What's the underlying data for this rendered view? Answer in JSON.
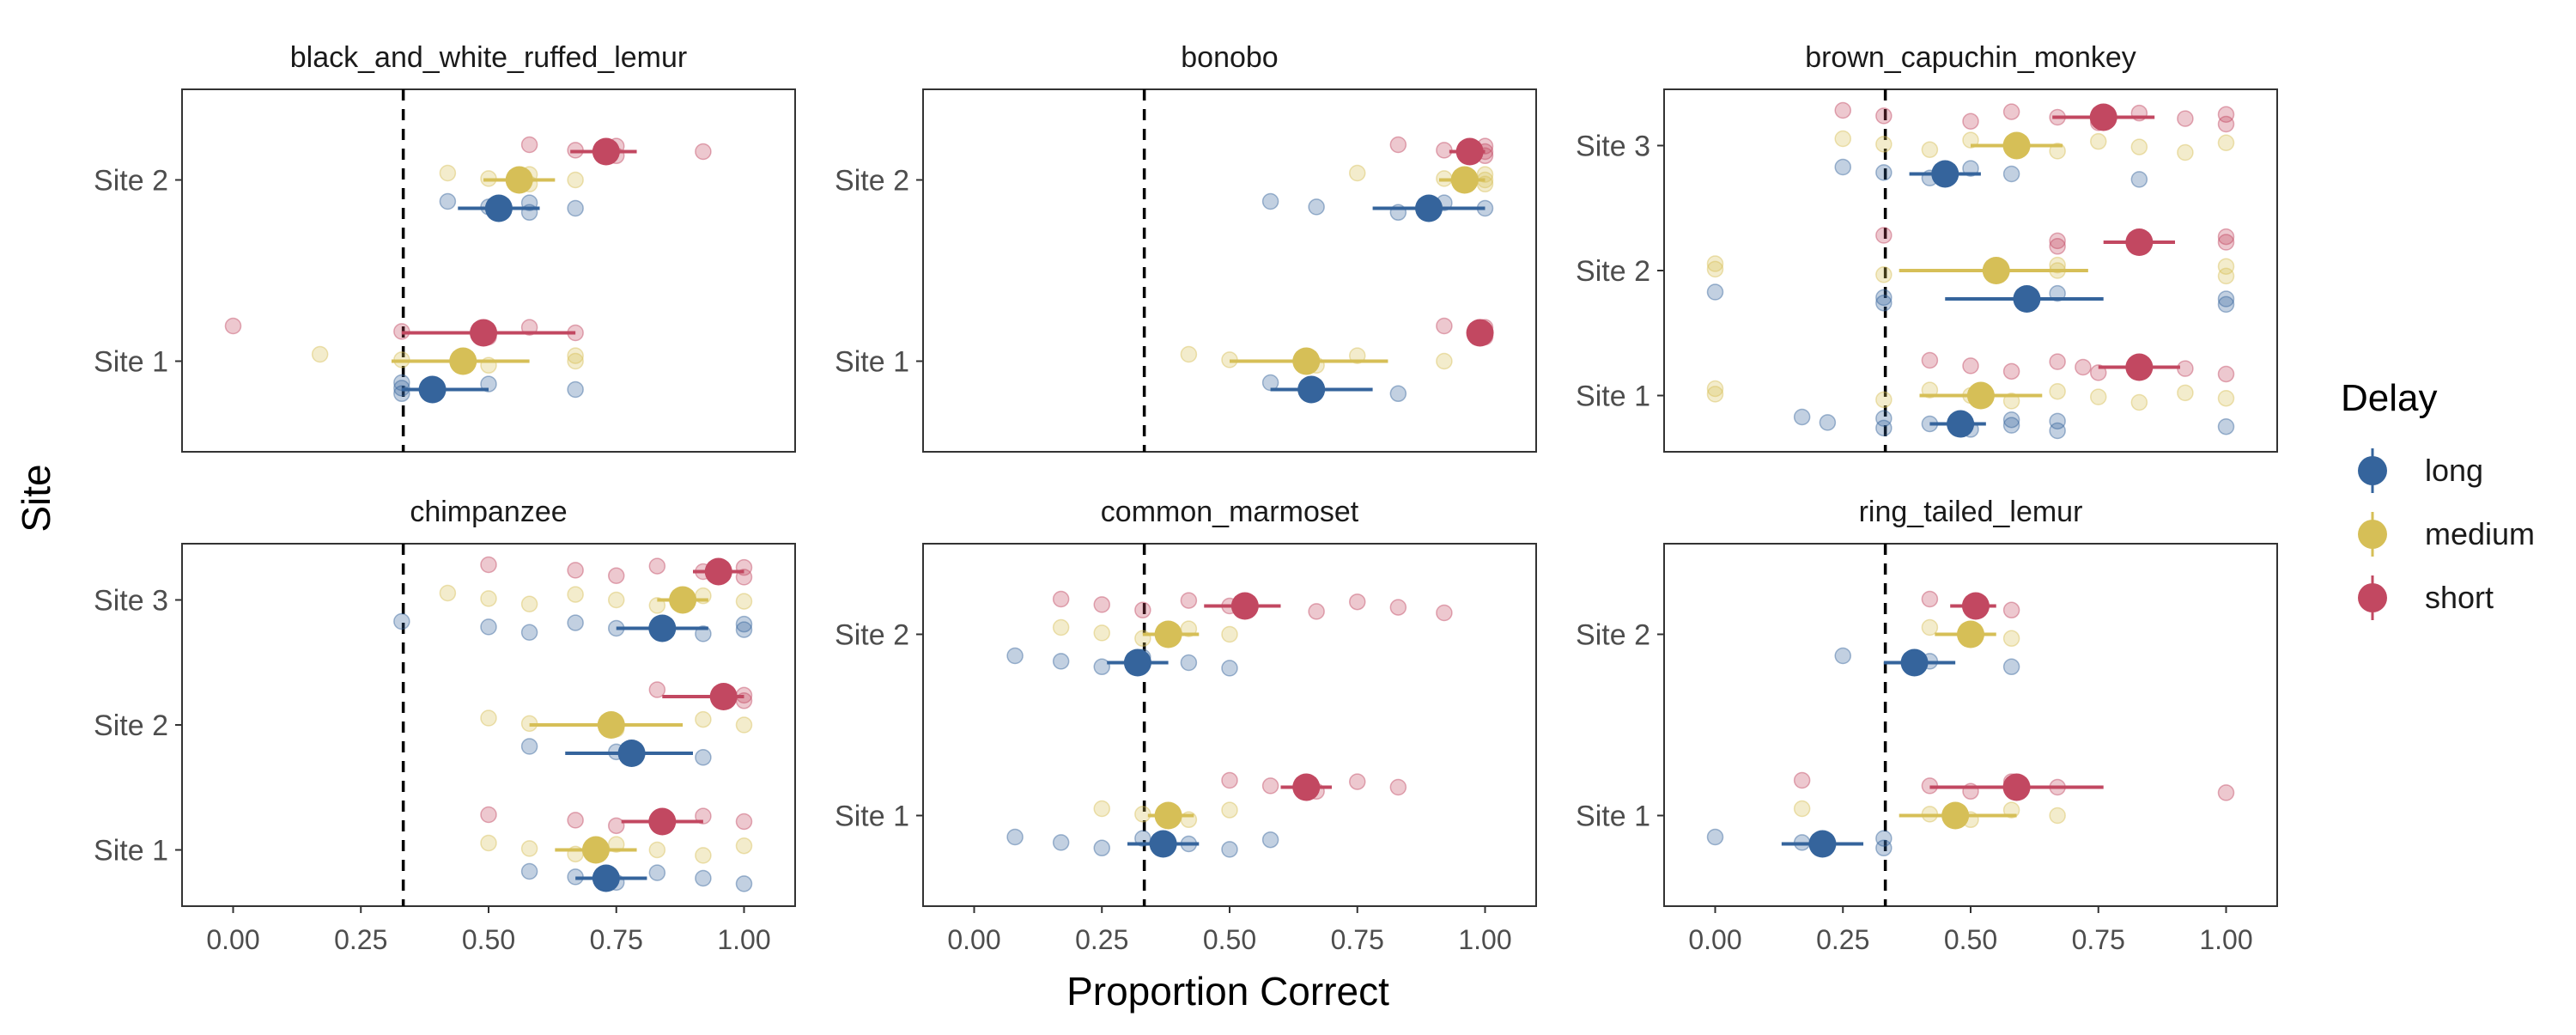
{
  "chart_data": {
    "type": "scatter",
    "xlabel": "Proportion Correct",
    "ylabel": "Site",
    "xlim": [
      -0.1,
      1.1
    ],
    "xticks": [
      "0.00",
      "0.25",
      "0.50",
      "0.75",
      "1.00"
    ],
    "reference_line_x": 0.333,
    "legend": {
      "title": "Delay",
      "position": "right",
      "items": [
        "long",
        "medium",
        "short"
      ]
    },
    "series_colors": {
      "long": "#35649c",
      "medium": "#d6bf57",
      "short": "#c24861"
    },
    "panels": [
      {
        "title": "black_and_white_ruffed_lemur",
        "sites": [
          "Site 1",
          "Site 2"
        ],
        "means": {
          "long": [
            {
              "site": "Site 1",
              "mean": 0.39,
              "lo": 0.33,
              "hi": 0.5
            },
            {
              "site": "Site 2",
              "mean": 0.52,
              "lo": 0.44,
              "hi": 0.6
            }
          ],
          "medium": [
            {
              "site": "Site 1",
              "mean": 0.45,
              "lo": 0.31,
              "hi": 0.58
            },
            {
              "site": "Site 2",
              "mean": 0.56,
              "lo": 0.49,
              "hi": 0.63
            }
          ],
          "short": [
            {
              "site": "Site 1",
              "mean": 0.49,
              "lo": 0.33,
              "hi": 0.67
            },
            {
              "site": "Site 2",
              "mean": 0.73,
              "lo": 0.66,
              "hi": 0.79
            }
          ]
        },
        "points": {
          "long": [
            {
              "site": "Site 1",
              "values": [
                0.33,
                0.33,
                0.33,
                0.5,
                0.67
              ]
            },
            {
              "site": "Site 2",
              "values": [
                0.42,
                0.5,
                0.58,
                0.58,
                0.67
              ]
            }
          ],
          "medium": [
            {
              "site": "Site 1",
              "values": [
                0.17,
                0.33,
                0.5,
                0.67,
                0.67
              ]
            },
            {
              "site": "Site 2",
              "values": [
                0.42,
                0.5,
                0.58,
                0.58,
                0.67
              ]
            }
          ],
          "short": [
            {
              "site": "Site 1",
              "values": [
                0.0,
                0.33,
                0.5,
                0.58,
                0.67
              ]
            },
            {
              "site": "Site 2",
              "values": [
                0.58,
                0.67,
                0.75,
                0.75,
                0.92
              ]
            }
          ]
        }
      },
      {
        "title": "bonobo",
        "sites": [
          "Site 1",
          "Site 2"
        ],
        "means": {
          "long": [
            {
              "site": "Site 1",
              "mean": 0.66,
              "lo": 0.58,
              "hi": 0.78
            },
            {
              "site": "Site 2",
              "mean": 0.89,
              "lo": 0.78,
              "hi": 1.0
            }
          ],
          "medium": [
            {
              "site": "Site 1",
              "mean": 0.65,
              "lo": 0.5,
              "hi": 0.81
            },
            {
              "site": "Site 2",
              "mean": 0.96,
              "lo": 0.91,
              "hi": 1.0
            }
          ],
          "short": [
            {
              "site": "Site 1",
              "mean": 0.99,
              "lo": 0.97,
              "hi": 1.0
            },
            {
              "site": "Site 2",
              "mean": 0.97,
              "lo": 0.93,
              "hi": 1.0
            }
          ]
        },
        "points": {
          "long": [
            {
              "site": "Site 1",
              "values": [
                0.58,
                0.67,
                0.83
              ]
            },
            {
              "site": "Site 2",
              "values": [
                0.58,
                0.67,
                0.83,
                0.92,
                1.0
              ]
            }
          ],
          "medium": [
            {
              "site": "Site 1",
              "values": [
                0.42,
                0.5,
                0.67,
                0.75,
                0.92
              ]
            },
            {
              "site": "Site 2",
              "values": [
                0.75,
                0.92,
                1.0,
                1.0,
                1.0
              ]
            }
          ],
          "short": [
            {
              "site": "Site 1",
              "values": [
                0.92,
                1.0,
                1.0,
                1.0
              ]
            },
            {
              "site": "Site 2",
              "values": [
                0.83,
                0.92,
                1.0,
                1.0,
                1.0
              ]
            }
          ]
        }
      },
      {
        "title": "brown_capuchin_monkey",
        "sites": [
          "Site 1",
          "Site 2",
          "Site 3"
        ],
        "means": {
          "long": [
            {
              "site": "Site 1",
              "mean": 0.48,
              "lo": 0.42,
              "hi": 0.53
            },
            {
              "site": "Site 2",
              "mean": 0.61,
              "lo": 0.45,
              "hi": 0.76
            },
            {
              "site": "Site 3",
              "mean": 0.45,
              "lo": 0.38,
              "hi": 0.52
            }
          ],
          "medium": [
            {
              "site": "Site 1",
              "mean": 0.52,
              "lo": 0.4,
              "hi": 0.64
            },
            {
              "site": "Site 2",
              "mean": 0.55,
              "lo": 0.36,
              "hi": 0.73
            },
            {
              "site": "Site 3",
              "mean": 0.59,
              "lo": 0.5,
              "hi": 0.68
            }
          ],
          "short": [
            {
              "site": "Site 1",
              "mean": 0.83,
              "lo": 0.75,
              "hi": 0.91
            },
            {
              "site": "Site 2",
              "mean": 0.83,
              "lo": 0.76,
              "hi": 0.9
            },
            {
              "site": "Site 3",
              "mean": 0.76,
              "lo": 0.66,
              "hi": 0.86
            }
          ]
        },
        "points": {
          "long": [
            {
              "site": "Site 1",
              "values": [
                0.17,
                0.22,
                0.33,
                0.33,
                0.42,
                0.5,
                0.58,
                0.58,
                0.67,
                0.67,
                1.0
              ]
            },
            {
              "site": "Site 2",
              "values": [
                0.0,
                0.33,
                0.33,
                0.67,
                1.0,
                1.0
              ]
            },
            {
              "site": "Site 3",
              "values": [
                0.25,
                0.33,
                0.42,
                0.5,
                0.58,
                0.83
              ]
            }
          ],
          "medium": [
            {
              "site": "Site 1",
              "values": [
                0.0,
                0.0,
                0.33,
                0.42,
                0.5,
                0.58,
                0.67,
                0.75,
                0.83,
                0.92,
                1.0
              ]
            },
            {
              "site": "Site 2",
              "values": [
                0.0,
                0.0,
                0.33,
                0.67,
                0.67,
                1.0,
                1.0
              ]
            },
            {
              "site": "Site 3",
              "values": [
                0.25,
                0.33,
                0.42,
                0.5,
                0.58,
                0.67,
                0.75,
                0.83,
                0.92,
                1.0
              ]
            }
          ],
          "short": [
            {
              "site": "Site 1",
              "values": [
                0.42,
                0.5,
                0.58,
                0.67,
                0.72,
                0.75,
                0.83,
                0.92,
                1.0
              ]
            },
            {
              "site": "Site 2",
              "values": [
                0.33,
                0.67,
                0.67,
                1.0,
                1.0
              ]
            },
            {
              "site": "Site 3",
              "values": [
                0.25,
                0.33,
                0.5,
                0.58,
                0.67,
                0.75,
                0.83,
                0.92,
                1.0,
                1.0
              ]
            }
          ]
        }
      },
      {
        "title": "chimpanzee",
        "sites": [
          "Site 1",
          "Site 2",
          "Site 3"
        ],
        "means": {
          "long": [
            {
              "site": "Site 1",
              "mean": 0.73,
              "lo": 0.67,
              "hi": 0.81
            },
            {
              "site": "Site 2",
              "mean": 0.78,
              "lo": 0.65,
              "hi": 0.9
            },
            {
              "site": "Site 3",
              "mean": 0.84,
              "lo": 0.75,
              "hi": 0.93
            }
          ],
          "medium": [
            {
              "site": "Site 1",
              "mean": 0.71,
              "lo": 0.63,
              "hi": 0.79
            },
            {
              "site": "Site 2",
              "mean": 0.74,
              "lo": 0.58,
              "hi": 0.88
            },
            {
              "site": "Site 3",
              "mean": 0.88,
              "lo": 0.83,
              "hi": 0.93
            }
          ],
          "short": [
            {
              "site": "Site 1",
              "mean": 0.84,
              "lo": 0.76,
              "hi": 0.92
            },
            {
              "site": "Site 2",
              "mean": 0.96,
              "lo": 0.84,
              "hi": 1.0
            },
            {
              "site": "Site 3",
              "mean": 0.95,
              "lo": 0.9,
              "hi": 1.0
            }
          ]
        },
        "points": {
          "long": [
            {
              "site": "Site 1",
              "values": [
                0.58,
                0.67,
                0.75,
                0.83,
                0.92,
                1.0
              ]
            },
            {
              "site": "Site 2",
              "values": [
                0.58,
                0.75,
                0.92
              ]
            },
            {
              "site": "Site 3",
              "values": [
                0.33,
                0.5,
                0.58,
                0.67,
                0.75,
                0.92,
                1.0,
                1.0
              ]
            }
          ],
          "medium": [
            {
              "site": "Site 1",
              "values": [
                0.5,
                0.58,
                0.67,
                0.75,
                0.83,
                0.92,
                1.0
              ]
            },
            {
              "site": "Site 2",
              "values": [
                0.5,
                0.58,
                0.75,
                0.92,
                1.0
              ]
            },
            {
              "site": "Site 3",
              "values": [
                0.42,
                0.5,
                0.58,
                0.67,
                0.75,
                0.83,
                0.92,
                1.0
              ]
            }
          ],
          "short": [
            {
              "site": "Site 1",
              "values": [
                0.5,
                0.67,
                0.75,
                0.92,
                1.0
              ]
            },
            {
              "site": "Site 2",
              "values": [
                0.83,
                1.0,
                1.0
              ]
            },
            {
              "site": "Site 3",
              "values": [
                0.5,
                0.67,
                0.75,
                0.83,
                0.92,
                1.0,
                1.0
              ]
            }
          ]
        }
      },
      {
        "title": "common_marmoset",
        "sites": [
          "Site 1",
          "Site 2"
        ],
        "means": {
          "long": [
            {
              "site": "Site 1",
              "mean": 0.37,
              "lo": 0.3,
              "hi": 0.44
            },
            {
              "site": "Site 2",
              "mean": 0.32,
              "lo": 0.26,
              "hi": 0.38
            }
          ],
          "medium": [
            {
              "site": "Site 1",
              "mean": 0.38,
              "lo": 0.34,
              "hi": 0.43
            },
            {
              "site": "Site 2",
              "mean": 0.38,
              "lo": 0.33,
              "hi": 0.44
            }
          ],
          "short": [
            {
              "site": "Site 1",
              "mean": 0.65,
              "lo": 0.6,
              "hi": 0.7
            },
            {
              "site": "Site 2",
              "mean": 0.53,
              "lo": 0.45,
              "hi": 0.6
            }
          ]
        },
        "points": {
          "long": [
            {
              "site": "Site 1",
              "values": [
                0.08,
                0.17,
                0.25,
                0.33,
                0.42,
                0.5,
                0.58
              ]
            },
            {
              "site": "Site 2",
              "values": [
                0.08,
                0.17,
                0.25,
                0.33,
                0.42,
                0.5
              ]
            }
          ],
          "medium": [
            {
              "site": "Site 1",
              "values": [
                0.25,
                0.33,
                0.42,
                0.5
              ]
            },
            {
              "site": "Site 2",
              "values": [
                0.17,
                0.25,
                0.33,
                0.42,
                0.5
              ]
            }
          ],
          "short": [
            {
              "site": "Site 1",
              "values": [
                0.5,
                0.58,
                0.67,
                0.75,
                0.83
              ]
            },
            {
              "site": "Site 2",
              "values": [
                0.17,
                0.25,
                0.33,
                0.42,
                0.5,
                0.67,
                0.75,
                0.83,
                0.92
              ]
            }
          ]
        }
      },
      {
        "title": "ring_tailed_lemur",
        "sites": [
          "Site 1",
          "Site 2"
        ],
        "means": {
          "long": [
            {
              "site": "Site 1",
              "mean": 0.21,
              "lo": 0.13,
              "hi": 0.29
            },
            {
              "site": "Site 2",
              "mean": 0.39,
              "lo": 0.33,
              "hi": 0.47
            }
          ],
          "medium": [
            {
              "site": "Site 1",
              "mean": 0.47,
              "lo": 0.36,
              "hi": 0.59
            },
            {
              "site": "Site 2",
              "mean": 0.5,
              "lo": 0.43,
              "hi": 0.55
            }
          ],
          "short": [
            {
              "site": "Site 1",
              "mean": 0.59,
              "lo": 0.42,
              "hi": 0.76
            },
            {
              "site": "Site 2",
              "mean": 0.51,
              "lo": 0.46,
              "hi": 0.55
            }
          ]
        },
        "points": {
          "long": [
            {
              "site": "Site 1",
              "values": [
                0.0,
                0.17,
                0.33,
                0.33
              ]
            },
            {
              "site": "Site 2",
              "values": [
                0.25,
                0.42,
                0.58
              ]
            }
          ],
          "medium": [
            {
              "site": "Site 1",
              "values": [
                0.17,
                0.42,
                0.5,
                0.58,
                0.67
              ]
            },
            {
              "site": "Site 2",
              "values": [
                0.42,
                0.5,
                0.58
              ]
            }
          ],
          "short": [
            {
              "site": "Site 1",
              "values": [
                0.17,
                0.42,
                0.5,
                0.58,
                0.67,
                1.0
              ]
            },
            {
              "site": "Site 2",
              "values": [
                0.42,
                0.5,
                0.58
              ]
            }
          ]
        }
      }
    ]
  }
}
